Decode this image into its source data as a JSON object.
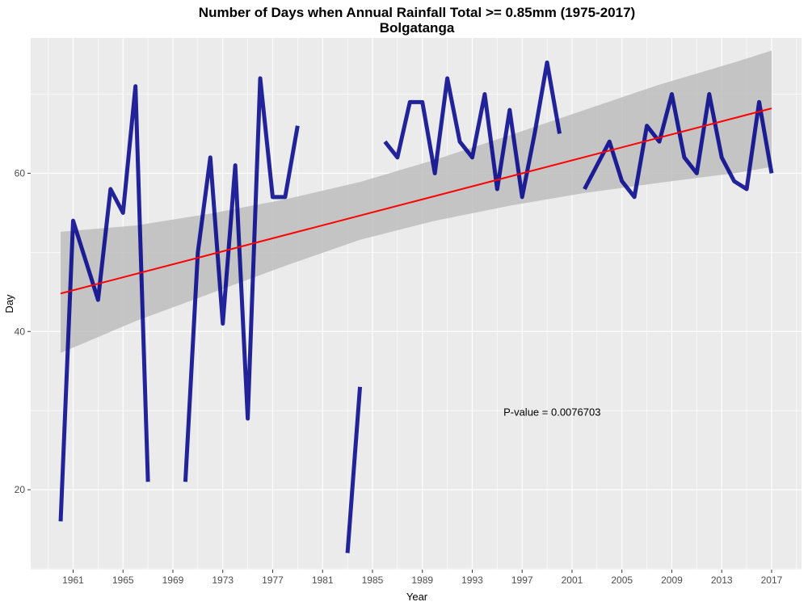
{
  "chart_data": {
    "type": "line",
    "title": "Number of Days when Annual Rainfall Total >= 0.85mm (1975-2017)",
    "subtitle": "Bolgatanga",
    "xlabel": "Year",
    "ylabel": "Day",
    "xlim": [
      1957.6,
      2019.4
    ],
    "ylim": [
      9.9,
      77.1
    ],
    "x_ticks": [
      1961,
      1965,
      1969,
      1973,
      1977,
      1981,
      1985,
      1989,
      1993,
      1997,
      2001,
      2005,
      2009,
      2013,
      2017
    ],
    "x_tick_labels": [
      "1961",
      "1965",
      "1969",
      "1973",
      "1977",
      "1981",
      "1985",
      "1989",
      "1993",
      "1997",
      "2001",
      "2005",
      "2009",
      "2013",
      "2017"
    ],
    "y_ticks": [
      20,
      40,
      60
    ],
    "y_tick_labels": [
      "20",
      "40",
      "60"
    ],
    "grid": true,
    "series": [
      {
        "name": "",
        "color": "#00008b",
        "x": [
          1960,
          1961,
          1962,
          1963,
          1964,
          1965,
          1966,
          1967,
          1968,
          1969,
          1970,
          1971,
          1972,
          1973,
          1974,
          1975,
          1976,
          1977,
          1978,
          1979,
          1980,
          1981,
          1982,
          1983,
          1984,
          1985,
          1986,
          1987,
          1988,
          1989,
          1990,
          1991,
          1992,
          1993,
          1994,
          1995,
          1996,
          1997,
          1998,
          1999,
          2000,
          2001,
          2002,
          2003,
          2004,
          2005,
          2006,
          2007,
          2008,
          2009,
          2010,
          2011,
          2012,
          2013,
          2014,
          2015,
          2016,
          2017
        ],
        "values": [
          16,
          54,
          49,
          44,
          58,
          55,
          71,
          21,
          null,
          null,
          21,
          50,
          62,
          41,
          61,
          29,
          72,
          57,
          57,
          66,
          null,
          null,
          null,
          12,
          33,
          null,
          64,
          62,
          69,
          69,
          60,
          72,
          64,
          62,
          70,
          58,
          68,
          57,
          65,
          74,
          65,
          null,
          58,
          61,
          64,
          59,
          57,
          66,
          64,
          70,
          62,
          60,
          70,
          62,
          59,
          58,
          69,
          60
        ]
      }
    ],
    "trend": {
      "name": "",
      "color": "#ff0000",
      "x": [
        1960,
        2017
      ],
      "y": [
        44.8,
        68.2
      ],
      "confidence_band": {
        "color": "#bdbdbd",
        "x": [
          1960,
          1966,
          1972,
          1978,
          1984,
          1990,
          1996,
          2002,
          2008,
          2014,
          2017
        ],
        "lower": [
          37.3,
          41.3,
          44.8,
          48.3,
          51.6,
          54.0,
          55.9,
          57.5,
          58.8,
          60.0,
          60.8
        ],
        "upper": [
          52.6,
          53.4,
          54.9,
          56.7,
          58.9,
          61.7,
          64.8,
          68.0,
          71.2,
          74.0,
          75.5
        ]
      }
    },
    "annotations": [
      {
        "label": "P-value =  0.0076703",
        "x": 1999.4,
        "y": 29.7
      }
    ]
  }
}
